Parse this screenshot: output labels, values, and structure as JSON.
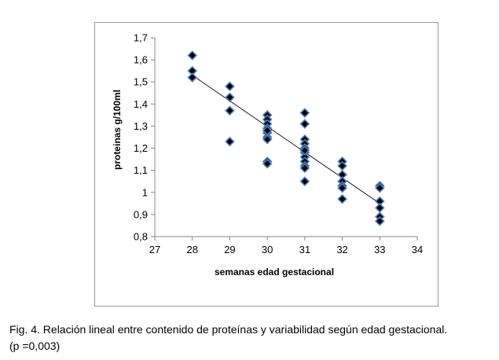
{
  "chart_data": {
    "type": "scatter",
    "title": "",
    "xlabel": "semanas edad gestacional",
    "ylabel": "proteinas g/100ml",
    "xlim": [
      27,
      34
    ],
    "ylim": [
      0.8,
      1.7
    ],
    "x_ticks": [
      "27",
      "28",
      "29",
      "30",
      "31",
      "32",
      "33",
      "34"
    ],
    "y_ticks": [
      "0,8",
      "0,9",
      "1",
      "1,1",
      "1,2",
      "1,3",
      "1,4",
      "1,5",
      "1,6",
      "1,7"
    ],
    "grid": false,
    "legend": "none",
    "marker_color": "#000000",
    "marker_edge_color": "#4f81bd",
    "series": [
      {
        "x": [
          28,
          28,
          28,
          29,
          29,
          29,
          29,
          30,
          30,
          30,
          30,
          30,
          30,
          30,
          30,
          30,
          30,
          31,
          31,
          31,
          31,
          31,
          31,
          31,
          31,
          31,
          31,
          31,
          31,
          32,
          32,
          32,
          32,
          32,
          32,
          32,
          33,
          33,
          33,
          33,
          33,
          33
        ],
        "y": [
          1.62,
          1.55,
          1.52,
          1.48,
          1.43,
          1.37,
          1.23,
          1.35,
          1.33,
          1.31,
          1.29,
          1.27,
          1.25,
          1.24,
          1.14,
          1.13,
          1.28,
          1.36,
          1.31,
          1.24,
          1.22,
          1.2,
          1.18,
          1.16,
          1.14,
          1.12,
          1.11,
          1.05,
          1.19,
          1.14,
          1.12,
          1.08,
          1.05,
          1.03,
          1.02,
          0.97,
          1.03,
          1.02,
          0.96,
          0.93,
          0.89,
          0.87
        ]
      }
    ],
    "trendline": {
      "type": "linear",
      "x": [
        28,
        33
      ],
      "y": [
        1.53,
        0.95
      ]
    }
  },
  "caption": {
    "line1": "Fig. 4. Relación lineal entre contenido de proteínas y variabilidad según edad gestacional.",
    "line2": "(p =0,003)"
  }
}
